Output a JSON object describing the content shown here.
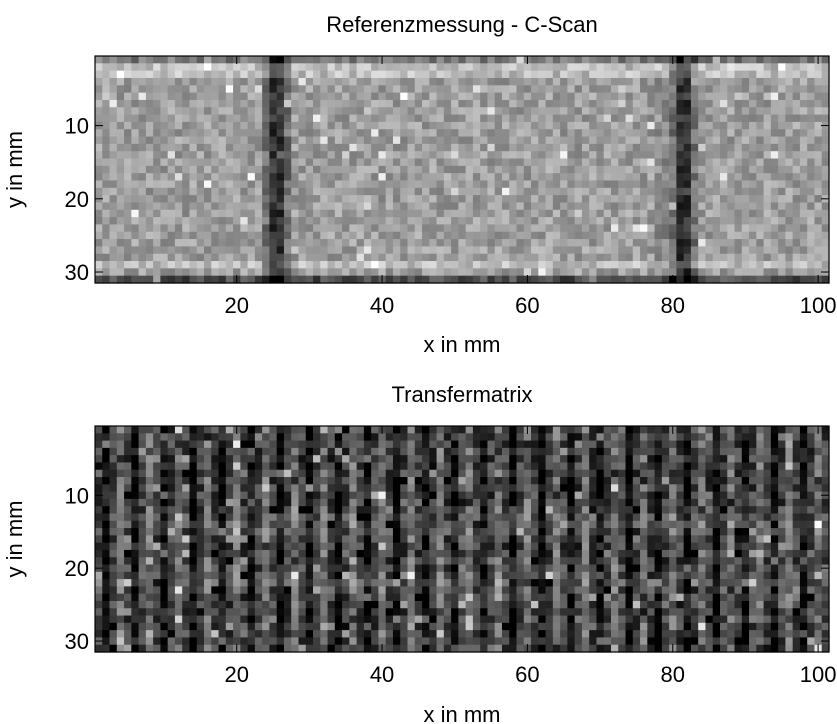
{
  "chart_data": [
    {
      "type": "heatmap",
      "title": "Referenzmessung - C-Scan",
      "xlabel": "x in mm",
      "ylabel": "y in mm",
      "xlim": [
        1,
        101
      ],
      "ylim": [
        31,
        1
      ],
      "x_ticks": [
        20,
        40,
        60,
        80,
        100
      ],
      "y_ticks": [
        10,
        20,
        30
      ],
      "colormap": "gray",
      "grid": false,
      "grid_size": [
        31,
        101
      ],
      "features": {
        "background_gray": 0.62,
        "dark_columns_x_mm": [
          25.5,
          81.5
        ],
        "dark_border_rows_y_mm": [
          1,
          31
        ],
        "bright_rows_y_mm": [
          2.5,
          29
        ]
      }
    },
    {
      "type": "heatmap",
      "title": "Transfermatrix",
      "xlabel": "x in mm",
      "ylabel": "y in mm",
      "xlim": [
        1,
        101
      ],
      "ylim": [
        31,
        1
      ],
      "x_ticks": [
        20,
        40,
        60,
        80,
        100
      ],
      "y_ticks": [
        10,
        20,
        30
      ],
      "colormap": "gray",
      "grid": false,
      "grid_size": [
        31,
        101
      ],
      "features": {
        "background_gray": 0.25,
        "column_period_mm": 4,
        "bright_rows_y_mm": [
          14,
          22
        ]
      }
    }
  ]
}
